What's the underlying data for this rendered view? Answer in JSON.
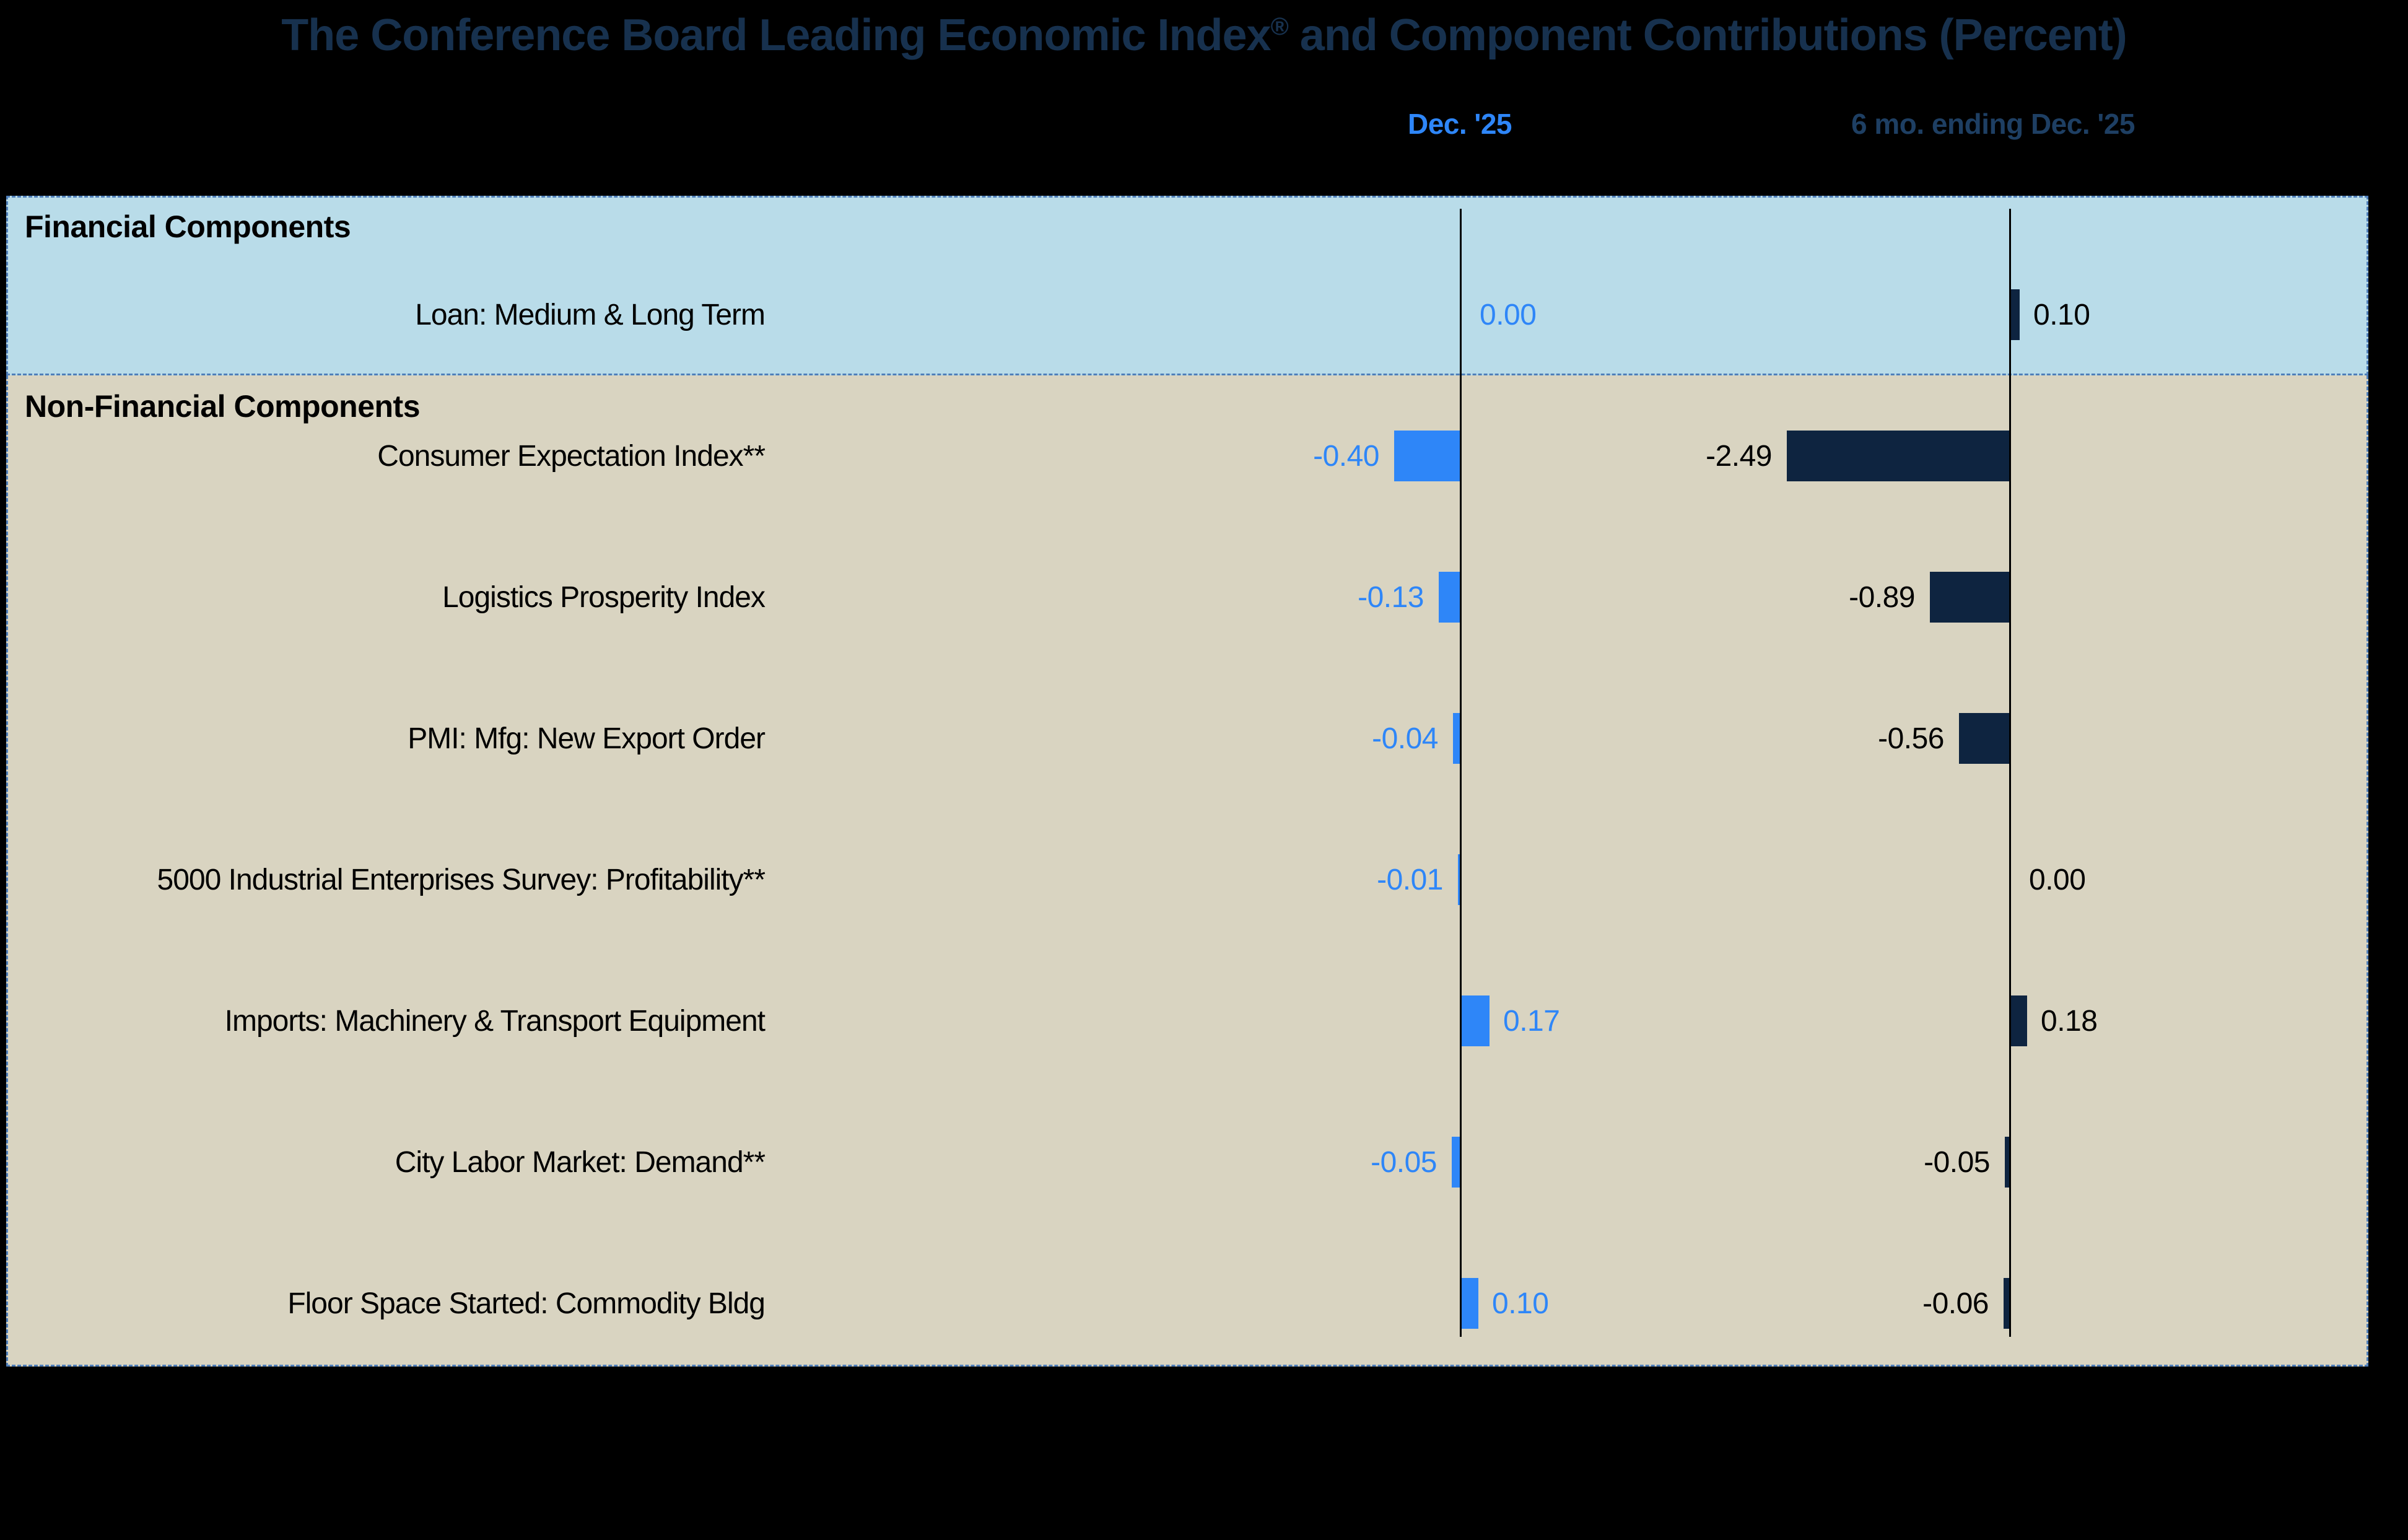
{
  "title": {
    "before_reg": "The Conference Board Leading Economic Index",
    "reg": "®",
    "after_reg": " and Component Contributions (Percent)"
  },
  "columns": [
    {
      "id": "dec25",
      "label": "Dec. '25",
      "color": "#2e86f8"
    },
    {
      "id": "six_mo",
      "label": "6 mo. ending Dec. '25",
      "color": "#1e3f63"
    }
  ],
  "sections": [
    {
      "name": "Financial Components",
      "rows": [
        {
          "label": "Loan: Medium & Long Term",
          "dec25": 0.0,
          "dec25_display": "0.00",
          "six_mo": 0.1,
          "six_mo_display": "0.10"
        }
      ]
    },
    {
      "name": "Non-Financial Components",
      "rows": [
        {
          "label": "Consumer Expectation Index**",
          "dec25": -0.4,
          "dec25_display": "-0.40",
          "six_mo": -2.49,
          "six_mo_display": "-2.49"
        },
        {
          "label": "Logistics Prosperity Index",
          "dec25": -0.13,
          "dec25_display": "-0.13",
          "six_mo": -0.89,
          "six_mo_display": "-0.89"
        },
        {
          "label": "PMI: Mfg: New Export Order",
          "dec25": -0.04,
          "dec25_display": "-0.04",
          "six_mo": -0.56,
          "six_mo_display": "-0.56"
        },
        {
          "label": "5000 Industrial Enterprises Survey: Profitability**",
          "dec25": -0.01,
          "dec25_display": "-0.01",
          "six_mo": 0.0,
          "six_mo_display": "0.00"
        },
        {
          "label": "Imports: Machinery & Transport Equipment",
          "dec25": 0.17,
          "dec25_display": "0.17",
          "six_mo": 0.18,
          "six_mo_display": "0.18"
        },
        {
          "label": "City Labor Market: Demand**",
          "dec25": -0.05,
          "dec25_display": "-0.05",
          "six_mo": -0.05,
          "six_mo_display": "-0.05"
        },
        {
          "label": "Floor Space Started: Commodity Bldg",
          "dec25": 0.1,
          "dec25_display": "0.10",
          "six_mo": -0.06,
          "six_mo_display": "-0.06"
        }
      ]
    }
  ],
  "colors": {
    "page_background": "#000000",
    "title_navy": "#17314e",
    "dec25_blue": "#2e86f8",
    "six_mo_navy": "#1e3f63",
    "financial_band": "#b9dce9",
    "nonfinancial_band": "#d9d4c1",
    "bar_blue": "#2e86f8",
    "bar_navy": "#0e2440",
    "dashed_border": "#4f7fba",
    "axis_black": "#000000"
  },
  "chart_data": {
    "type": "bar",
    "orientation": "horizontal",
    "title": "The Conference Board Leading Economic Index® and Component Contributions (Percent)",
    "categories": [
      "Loan: Medium & Long Term",
      "Consumer Expectation Index**",
      "Logistics Prosperity Index",
      "PMI: Mfg: New Export Order",
      "5000 Industrial Enterprises Survey: Profitability**",
      "Imports: Machinery & Transport Equipment",
      "City Labor Market: Demand**",
      "Floor Space Started: Commodity Bldg"
    ],
    "series": [
      {
        "name": "Dec. '25",
        "color": "#2e86f8",
        "values": [
          0.0,
          -0.4,
          -0.13,
          -0.04,
          -0.01,
          0.17,
          -0.05,
          0.1
        ]
      },
      {
        "name": "6 mo. ending Dec. '25",
        "color": "#0e2440",
        "values": [
          0.1,
          -2.49,
          -0.89,
          -0.56,
          0.0,
          0.18,
          -0.05,
          -0.06
        ]
      }
    ],
    "sections": [
      {
        "name": "Financial Components",
        "row_indices": [
          0
        ]
      },
      {
        "name": "Non-Financial Components",
        "row_indices": [
          1,
          2,
          3,
          4,
          5,
          6,
          7
        ]
      }
    ],
    "legend_position": "none",
    "grid": false,
    "value_labels": "outside bar ends, negatives left of bar, positives right of bar"
  }
}
